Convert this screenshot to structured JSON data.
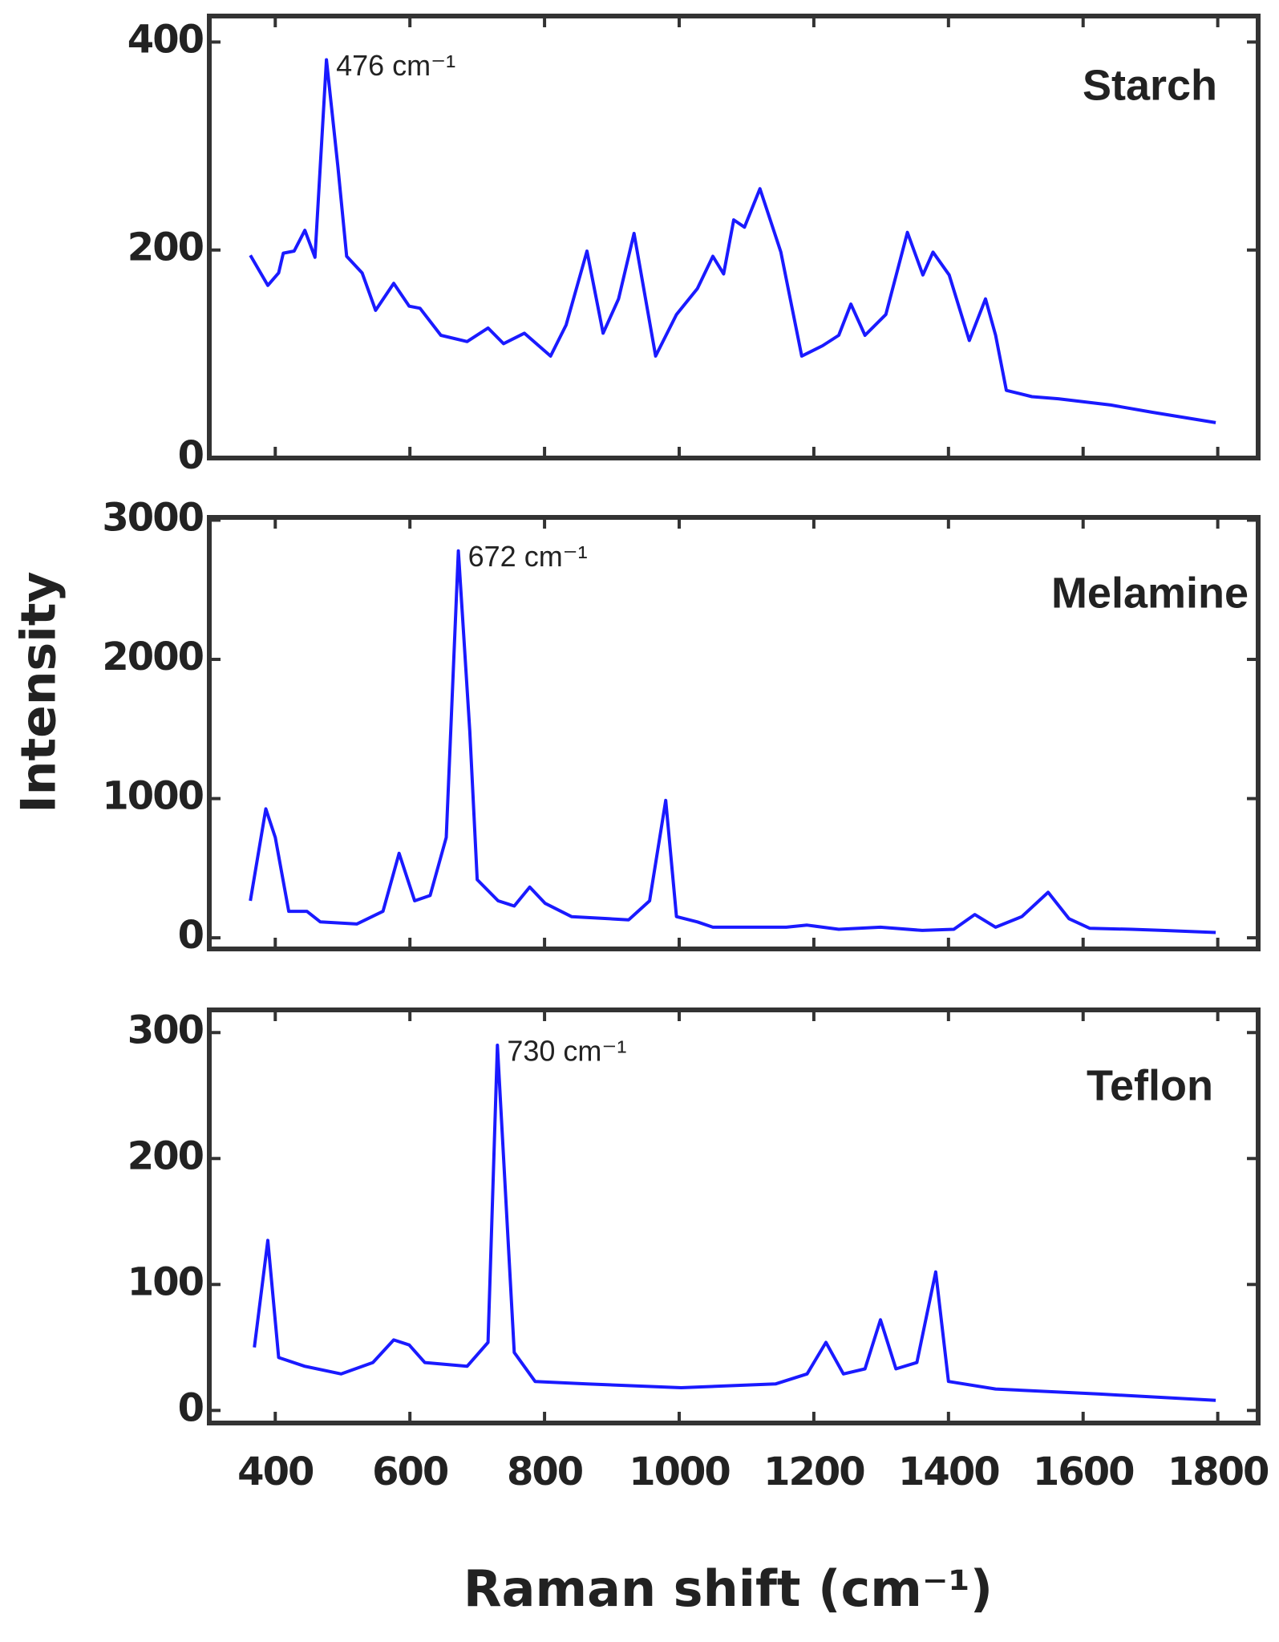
{
  "chart_data": [
    {
      "type": "line",
      "title": "Starch",
      "annotation": "476 cm⁻¹",
      "color": "#1a1aff",
      "x": [
        363,
        389,
        405,
        412,
        428,
        444,
        459,
        476,
        493,
        506,
        529,
        549,
        576,
        599,
        615,
        646,
        685,
        716,
        739,
        770,
        809,
        832,
        863,
        887,
        910,
        933,
        965,
        996,
        1027,
        1050,
        1066,
        1081,
        1097,
        1120,
        1151,
        1182,
        1213,
        1237,
        1255,
        1276,
        1307,
        1339,
        1362,
        1377,
        1401,
        1431,
        1455,
        1470,
        1486,
        1524,
        1563,
        1641,
        1703,
        1797
      ],
      "values": [
        195,
        166,
        178,
        197,
        199,
        219,
        193,
        383,
        280,
        194,
        178,
        142,
        168,
        146,
        144,
        118,
        112,
        125,
        110,
        120,
        98,
        128,
        199,
        120,
        153,
        216,
        98,
        138,
        163,
        194,
        177,
        229,
        222,
        259,
        198,
        98,
        108,
        118,
        148,
        118,
        138,
        217,
        176,
        198,
        176,
        113,
        153,
        118,
        65,
        59,
        57,
        51,
        44,
        34
      ],
      "xlim": [
        302,
        1860
      ],
      "ylim": [
        0,
        425
      ],
      "yticks": [
        0,
        200,
        400
      ]
    },
    {
      "type": "line",
      "title": "Melamine",
      "annotation": "672 cm⁻¹",
      "color": "#1a1aff",
      "ylabel": "Intensity",
      "x": [
        363,
        386,
        400,
        420,
        447,
        467,
        521,
        560,
        584,
        607,
        630,
        654,
        672,
        689,
        700,
        731,
        755,
        778,
        801,
        840,
        895,
        925,
        956,
        980,
        996,
        1027,
        1050,
        1159,
        1190,
        1237,
        1299,
        1361,
        1408,
        1439,
        1470,
        1509,
        1548,
        1579,
        1610,
        1672,
        1718,
        1797
      ],
      "values": [
        266,
        926,
        721,
        190,
        190,
        114,
        99,
        190,
        607,
        266,
        304,
        721,
        2780,
        1481,
        418,
        266,
        228,
        364,
        247,
        152,
        137,
        129,
        266,
        987,
        152,
        114,
        76,
        76,
        91,
        61,
        76,
        53,
        61,
        167,
        76,
        152,
        327,
        137,
        68,
        61,
        53,
        38
      ],
      "xlim": [
        302,
        1860
      ],
      "ylim": [
        -80,
        3020
      ],
      "yticks": [
        0,
        1000,
        2000,
        3000
      ]
    },
    {
      "type": "line",
      "title": "Teflon",
      "annotation": "730 cm⁻¹",
      "color": "#1a1aff",
      "xlabel": "Raman shift (cm⁻¹)",
      "x": [
        369,
        389,
        405,
        444,
        498,
        545,
        576,
        599,
        622,
        685,
        716,
        730,
        755,
        786,
        863,
        1003,
        1143,
        1190,
        1218,
        1244,
        1276,
        1299,
        1322,
        1353,
        1381,
        1400,
        1470,
        1625,
        1797
      ],
      "values": [
        50,
        135,
        42,
        35,
        29,
        38,
        56,
        52,
        38,
        35,
        54,
        290,
        46,
        23,
        21,
        18,
        21,
        29,
        54,
        29,
        33,
        72,
        33,
        38,
        110,
        23,
        17,
        13,
        8
      ],
      "xlim": [
        302,
        1860
      ],
      "ylim": [
        -10,
        318
      ],
      "yticks": [
        0,
        100,
        200,
        300
      ],
      "xticks": [
        400,
        600,
        800,
        1000,
        1200,
        1400,
        1600,
        1800
      ]
    }
  ]
}
